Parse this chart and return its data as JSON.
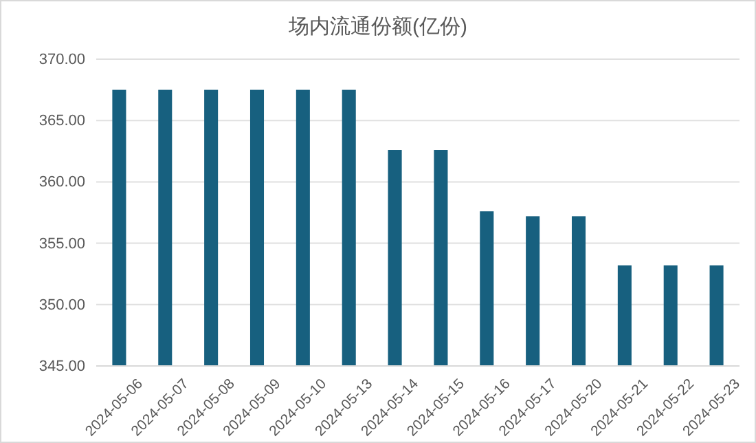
{
  "chart_data": {
    "type": "bar",
    "title": "场内流通份额(亿份)",
    "categories": [
      "2024-05-06",
      "2024-05-07",
      "2024-05-08",
      "2024-05-09",
      "2024-05-10",
      "2024-05-13",
      "2024-05-14",
      "2024-05-15",
      "2024-05-16",
      "2024-05-17",
      "2024-05-20",
      "2024-05-21",
      "2024-05-22",
      "2024-05-23"
    ],
    "values": [
      367.5,
      367.5,
      367.5,
      367.5,
      367.5,
      367.5,
      362.6,
      362.6,
      357.6,
      357.2,
      357.2,
      353.2,
      353.2,
      353.2
    ],
    "color": "#17607f",
    "ylim": [
      345,
      370
    ],
    "yticks": [
      {
        "value": 345,
        "label": "345.00"
      },
      {
        "value": 350,
        "label": "350.00"
      },
      {
        "value": 355,
        "label": "355.00"
      },
      {
        "value": 360,
        "label": "360.00"
      },
      {
        "value": 365,
        "label": "365.00"
      },
      {
        "value": 370,
        "label": "370.00"
      }
    ],
    "grid": "y"
  }
}
